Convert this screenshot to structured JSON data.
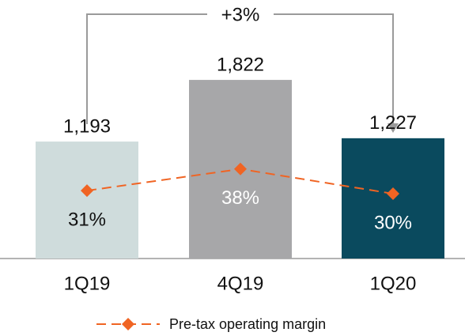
{
  "chart_data": {
    "type": "bar",
    "categories": [
      "1Q19",
      "4Q19",
      "1Q20"
    ],
    "series": [
      {
        "type": "bar",
        "colors": [
          "#cfdcdc",
          "#a7a7a9",
          "#0a4a5e"
        ],
        "values": [
          1193,
          1822,
          1227
        ],
        "value_labels": [
          "1,193",
          "1,822",
          "1,227"
        ]
      },
      {
        "type": "line",
        "name": "Pre-tax operating margin",
        "color": "#f06423",
        "axis": "y2",
        "values": [
          31,
          38,
          30
        ],
        "value_labels": [
          "31%",
          "38%",
          "30%"
        ],
        "label_colors": [
          "#111111",
          "#ffffff",
          "#ffffff"
        ]
      }
    ],
    "annotation": "+3%",
    "legend": "bottom"
  }
}
